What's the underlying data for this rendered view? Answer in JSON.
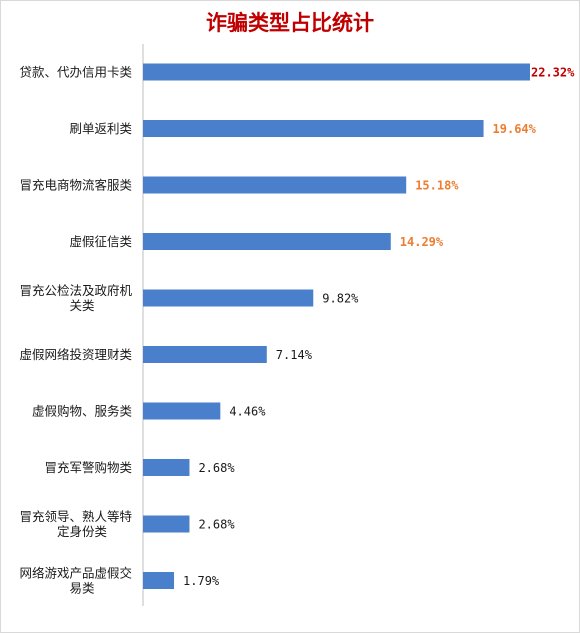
{
  "chart_data": {
    "type": "bar",
    "orientation": "horizontal",
    "title": "诈骗类型占比统计",
    "categories": [
      [
        "贷款、代办信用卡类"
      ],
      [
        "刷单返利类"
      ],
      [
        "冒充电商物流客服类"
      ],
      [
        "虚假征信类"
      ],
      [
        "冒充公检法及政府机",
        "关类"
      ],
      [
        "虚假网络投资理财类"
      ],
      [
        "虚假购物、服务类"
      ],
      [
        "冒充军警购物类"
      ],
      [
        "冒充领导、熟人等特",
        "定身份类"
      ],
      [
        "网络游戏产品虚假交",
        "易类"
      ]
    ],
    "values": [
      22.32,
      19.64,
      15.18,
      14.29,
      9.82,
      7.14,
      4.46,
      2.68,
      2.68,
      1.79
    ],
    "labels": [
      "22.32%",
      "19.64%",
      "15.18%",
      "14.29%",
      "9.82%",
      "7.14%",
      "4.46%",
      "2.68%",
      "2.68%",
      "1.79%"
    ],
    "label_colors": [
      "#c00000",
      "#ed7d31",
      "#ed7d31",
      "#ed7d31",
      "#1a1a1a",
      "#1a1a1a",
      "#1a1a1a",
      "#1a1a1a",
      "#1a1a1a",
      "#1a1a1a"
    ],
    "label_bold": [
      true,
      true,
      true,
      true,
      false,
      false,
      false,
      false,
      false,
      false
    ],
    "bar_color": "#4a7fcc",
    "title_color": "#c00000",
    "xlim": [
      0,
      22.32
    ],
    "grid": false,
    "legend": "none"
  }
}
